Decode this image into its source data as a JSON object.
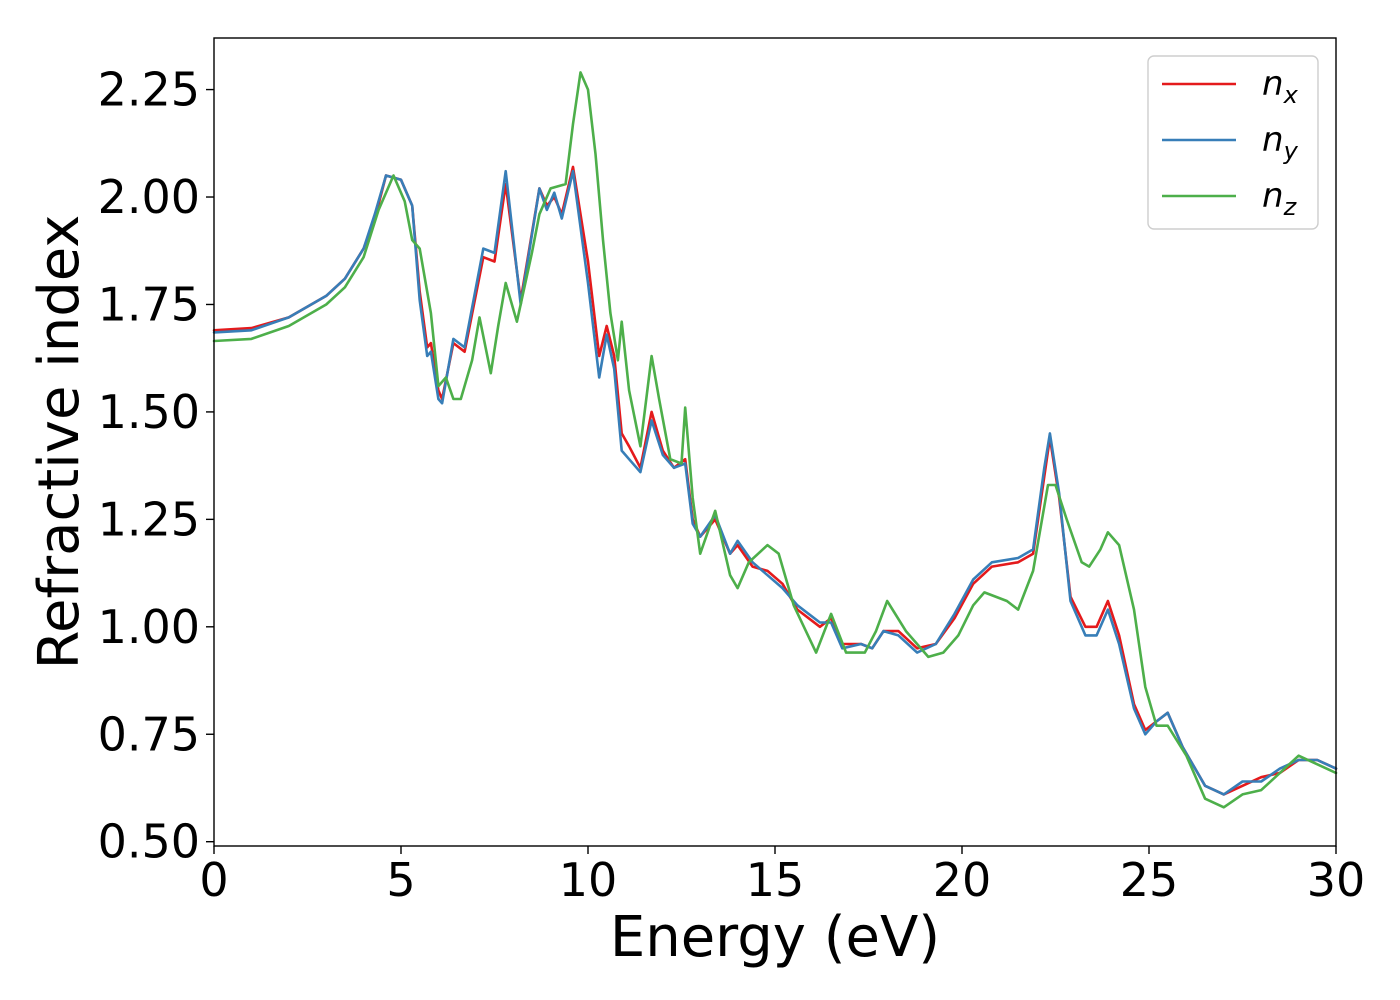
{
  "chart_data": {
    "type": "line",
    "title": "",
    "xlabel": "Energy (eV)",
    "ylabel": "Refractive index",
    "xlim": [
      0,
      30
    ],
    "ylim": [
      0.49,
      2.37
    ],
    "xticks": [
      "0",
      "5",
      "10",
      "15",
      "20",
      "25",
      "30"
    ],
    "yticks": [
      "0.50",
      "0.75",
      "1.00",
      "1.25",
      "1.50",
      "1.75",
      "2.00",
      "2.25"
    ],
    "grid": false,
    "legend_position": "top-right",
    "series": [
      {
        "name": "n_x",
        "label_base": "n",
        "label_sub": "x",
        "color": "#e41a1c",
        "points": [
          [
            0,
            1.69
          ],
          [
            1,
            1.695
          ],
          [
            2,
            1.72
          ],
          [
            3,
            1.77
          ],
          [
            3.5,
            1.81
          ],
          [
            4,
            1.88
          ],
          [
            4.3,
            1.95
          ],
          [
            4.6,
            2.05
          ],
          [
            5,
            2.04
          ],
          [
            5.3,
            1.98
          ],
          [
            5.5,
            1.78
          ],
          [
            5.7,
            1.65
          ],
          [
            5.8,
            1.66
          ],
          [
            6,
            1.55
          ],
          [
            6.1,
            1.53
          ],
          [
            6.4,
            1.66
          ],
          [
            6.7,
            1.64
          ],
          [
            7.2,
            1.86
          ],
          [
            7.5,
            1.85
          ],
          [
            7.8,
            2.03
          ],
          [
            8.2,
            1.76
          ],
          [
            8.7,
            2.02
          ],
          [
            8.9,
            1.98
          ],
          [
            9.1,
            2.0
          ],
          [
            9.3,
            1.96
          ],
          [
            9.6,
            2.07
          ],
          [
            10,
            1.85
          ],
          [
            10.3,
            1.63
          ],
          [
            10.5,
            1.7
          ],
          [
            10.7,
            1.63
          ],
          [
            10.9,
            1.45
          ],
          [
            11.1,
            1.42
          ],
          [
            11.4,
            1.37
          ],
          [
            11.7,
            1.5
          ],
          [
            12,
            1.41
          ],
          [
            12.3,
            1.37
          ],
          [
            12.6,
            1.39
          ],
          [
            12.8,
            1.25
          ],
          [
            13,
            1.21
          ],
          [
            13.4,
            1.25
          ],
          [
            13.8,
            1.17
          ],
          [
            14,
            1.19
          ],
          [
            14.4,
            1.14
          ],
          [
            14.8,
            1.13
          ],
          [
            15.2,
            1.1
          ],
          [
            15.6,
            1.04
          ],
          [
            16.2,
            1.0
          ],
          [
            16.5,
            1.02
          ],
          [
            16.8,
            0.96
          ],
          [
            17.3,
            0.96
          ],
          [
            17.6,
            0.95
          ],
          [
            17.9,
            0.99
          ],
          [
            18.3,
            0.99
          ],
          [
            18.8,
            0.95
          ],
          [
            19.3,
            0.96
          ],
          [
            19.8,
            1.02
          ],
          [
            20.3,
            1.1
          ],
          [
            20.8,
            1.14
          ],
          [
            21.5,
            1.15
          ],
          [
            21.9,
            1.17
          ],
          [
            22.2,
            1.35
          ],
          [
            22.35,
            1.44
          ],
          [
            22.6,
            1.3
          ],
          [
            22.9,
            1.07
          ],
          [
            23.3,
            1.0
          ],
          [
            23.6,
            1.0
          ],
          [
            23.9,
            1.06
          ],
          [
            24.2,
            0.98
          ],
          [
            24.6,
            0.82
          ],
          [
            24.9,
            0.76
          ],
          [
            25.2,
            0.78
          ],
          [
            25.5,
            0.8
          ],
          [
            25.9,
            0.72
          ],
          [
            26.5,
            0.63
          ],
          [
            27,
            0.61
          ],
          [
            27.5,
            0.63
          ],
          [
            28,
            0.65
          ],
          [
            28.5,
            0.66
          ],
          [
            29,
            0.69
          ],
          [
            29.5,
            0.69
          ],
          [
            30,
            0.67
          ]
        ]
      },
      {
        "name": "n_y",
        "label_base": "n",
        "label_sub": "y",
        "color": "#377eb8",
        "points": [
          [
            0,
            1.685
          ],
          [
            1,
            1.69
          ],
          [
            2,
            1.72
          ],
          [
            3,
            1.77
          ],
          [
            3.5,
            1.81
          ],
          [
            4,
            1.88
          ],
          [
            4.3,
            1.96
          ],
          [
            4.6,
            2.05
          ],
          [
            5,
            2.04
          ],
          [
            5.3,
            1.98
          ],
          [
            5.5,
            1.76
          ],
          [
            5.7,
            1.63
          ],
          [
            5.8,
            1.64
          ],
          [
            6,
            1.53
          ],
          [
            6.1,
            1.52
          ],
          [
            6.4,
            1.67
          ],
          [
            6.7,
            1.65
          ],
          [
            7.2,
            1.88
          ],
          [
            7.5,
            1.87
          ],
          [
            7.8,
            2.06
          ],
          [
            8.2,
            1.75
          ],
          [
            8.7,
            2.02
          ],
          [
            8.9,
            1.97
          ],
          [
            9.1,
            2.01
          ],
          [
            9.3,
            1.95
          ],
          [
            9.6,
            2.06
          ],
          [
            10,
            1.8
          ],
          [
            10.3,
            1.58
          ],
          [
            10.5,
            1.68
          ],
          [
            10.7,
            1.6
          ],
          [
            10.9,
            1.41
          ],
          [
            11.1,
            1.39
          ],
          [
            11.4,
            1.36
          ],
          [
            11.7,
            1.48
          ],
          [
            12,
            1.4
          ],
          [
            12.3,
            1.37
          ],
          [
            12.6,
            1.38
          ],
          [
            12.8,
            1.24
          ],
          [
            13,
            1.21
          ],
          [
            13.4,
            1.26
          ],
          [
            13.8,
            1.17
          ],
          [
            14,
            1.2
          ],
          [
            14.4,
            1.15
          ],
          [
            14.8,
            1.12
          ],
          [
            15.2,
            1.09
          ],
          [
            15.6,
            1.05
          ],
          [
            16.2,
            1.01
          ],
          [
            16.5,
            1.01
          ],
          [
            16.8,
            0.95
          ],
          [
            17.3,
            0.96
          ],
          [
            17.6,
            0.95
          ],
          [
            17.9,
            0.99
          ],
          [
            18.3,
            0.98
          ],
          [
            18.8,
            0.94
          ],
          [
            19.3,
            0.96
          ],
          [
            19.8,
            1.03
          ],
          [
            20.3,
            1.11
          ],
          [
            20.8,
            1.15
          ],
          [
            21.5,
            1.16
          ],
          [
            21.9,
            1.18
          ],
          [
            22.2,
            1.37
          ],
          [
            22.35,
            1.45
          ],
          [
            22.6,
            1.31
          ],
          [
            22.9,
            1.06
          ],
          [
            23.3,
            0.98
          ],
          [
            23.6,
            0.98
          ],
          [
            23.9,
            1.04
          ],
          [
            24.2,
            0.96
          ],
          [
            24.6,
            0.81
          ],
          [
            24.9,
            0.75
          ],
          [
            25.2,
            0.78
          ],
          [
            25.5,
            0.8
          ],
          [
            25.9,
            0.72
          ],
          [
            26.5,
            0.63
          ],
          [
            27,
            0.61
          ],
          [
            27.5,
            0.64
          ],
          [
            28,
            0.64
          ],
          [
            28.5,
            0.67
          ],
          [
            29,
            0.69
          ],
          [
            29.5,
            0.69
          ],
          [
            30,
            0.67
          ]
        ]
      },
      {
        "name": "n_z",
        "label_base": "n",
        "label_sub": "z",
        "color": "#4daf4a",
        "points": [
          [
            0,
            1.665
          ],
          [
            1,
            1.67
          ],
          [
            2,
            1.7
          ],
          [
            3,
            1.75
          ],
          [
            3.5,
            1.79
          ],
          [
            4,
            1.86
          ],
          [
            4.4,
            1.97
          ],
          [
            4.8,
            2.05
          ],
          [
            5.1,
            1.99
          ],
          [
            5.3,
            1.9
          ],
          [
            5.5,
            1.88
          ],
          [
            5.8,
            1.73
          ],
          [
            6,
            1.56
          ],
          [
            6.2,
            1.58
          ],
          [
            6.4,
            1.53
          ],
          [
            6.6,
            1.53
          ],
          [
            6.9,
            1.62
          ],
          [
            7.1,
            1.72
          ],
          [
            7.4,
            1.59
          ],
          [
            7.6,
            1.7
          ],
          [
            7.8,
            1.8
          ],
          [
            8.1,
            1.71
          ],
          [
            8.5,
            1.87
          ],
          [
            8.7,
            1.96
          ],
          [
            9.0,
            2.02
          ],
          [
            9.4,
            2.03
          ],
          [
            9.6,
            2.17
          ],
          [
            9.8,
            2.29
          ],
          [
            10,
            2.25
          ],
          [
            10.2,
            2.1
          ],
          [
            10.4,
            1.9
          ],
          [
            10.6,
            1.73
          ],
          [
            10.8,
            1.62
          ],
          [
            10.9,
            1.71
          ],
          [
            11.1,
            1.55
          ],
          [
            11.4,
            1.42
          ],
          [
            11.7,
            1.63
          ],
          [
            11.9,
            1.53
          ],
          [
            12.2,
            1.39
          ],
          [
            12.5,
            1.38
          ],
          [
            12.6,
            1.51
          ],
          [
            12.8,
            1.3
          ],
          [
            13,
            1.17
          ],
          [
            13.4,
            1.27
          ],
          [
            13.8,
            1.12
          ],
          [
            14,
            1.09
          ],
          [
            14.3,
            1.15
          ],
          [
            14.8,
            1.19
          ],
          [
            15.1,
            1.17
          ],
          [
            15.5,
            1.05
          ],
          [
            16.1,
            0.94
          ],
          [
            16.5,
            1.03
          ],
          [
            16.9,
            0.94
          ],
          [
            17.4,
            0.94
          ],
          [
            17.7,
            0.99
          ],
          [
            18.0,
            1.06
          ],
          [
            18.5,
            0.99
          ],
          [
            19.1,
            0.93
          ],
          [
            19.5,
            0.94
          ],
          [
            19.9,
            0.98
          ],
          [
            20.3,
            1.05
          ],
          [
            20.6,
            1.08
          ],
          [
            21.2,
            1.06
          ],
          [
            21.5,
            1.04
          ],
          [
            21.9,
            1.13
          ],
          [
            22.3,
            1.33
          ],
          [
            22.5,
            1.33
          ],
          [
            22.8,
            1.25
          ],
          [
            23.2,
            1.15
          ],
          [
            23.4,
            1.14
          ],
          [
            23.7,
            1.18
          ],
          [
            23.9,
            1.22
          ],
          [
            24.2,
            1.19
          ],
          [
            24.6,
            1.04
          ],
          [
            24.9,
            0.86
          ],
          [
            25.2,
            0.77
          ],
          [
            25.5,
            0.77
          ],
          [
            26,
            0.7
          ],
          [
            26.5,
            0.6
          ],
          [
            27,
            0.58
          ],
          [
            27.5,
            0.61
          ],
          [
            28,
            0.62
          ],
          [
            28.5,
            0.66
          ],
          [
            29,
            0.7
          ],
          [
            29.5,
            0.68
          ],
          [
            30,
            0.66
          ]
        ]
      }
    ]
  }
}
